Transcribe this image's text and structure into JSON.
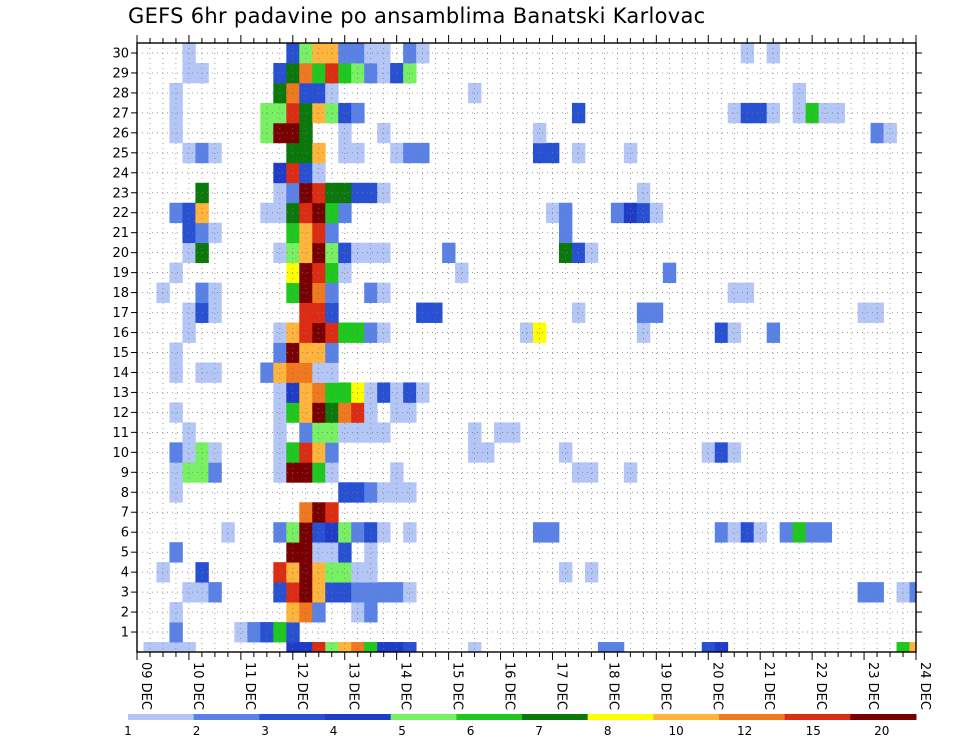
{
  "chart_data": {
    "type": "heatmap",
    "title": "GEFS 6hr padavine po ansamblima Banatski Karlovac",
    "x_tick_labels": [
      "09 DEC",
      "10 DEC",
      "11 DEC",
      "12 DEC",
      "13 DEC",
      "14 DEC",
      "15 DEC",
      "16 DEC",
      "17 DEC",
      "18 DEC",
      "19 DEC",
      "20 DEC",
      "21 DEC",
      "22 DEC",
      "23 DEC",
      "24 DEC"
    ],
    "steps_per_day": 4,
    "x_steps": 60,
    "y_members": [
      0,
      1,
      2,
      3,
      4,
      5,
      6,
      7,
      8,
      9,
      10,
      11,
      12,
      13,
      14,
      15,
      16,
      17,
      18,
      19,
      20,
      21,
      22,
      23,
      24,
      25,
      26,
      27,
      28,
      29,
      30
    ],
    "y_tick_labels": [
      "1",
      "2",
      "3",
      "4",
      "5",
      "6",
      "7",
      "8",
      "9",
      "10",
      "11",
      "12",
      "13",
      "14",
      "15",
      "16",
      "17",
      "18",
      "19",
      "20",
      "21",
      "22",
      "23",
      "24",
      "25",
      "26",
      "27",
      "28",
      "29",
      "30"
    ],
    "grid": "dotted",
    "legend": {
      "position": "bottom",
      "labels": [
        "1",
        "2",
        "3",
        "4",
        "5",
        "6",
        "7",
        "8",
        "10",
        "12",
        "15",
        "20"
      ],
      "colors": [
        "#b4c6f5",
        "#5a82e6",
        "#2850d2",
        "#1e3cc8",
        "#78f064",
        "#1ec81e",
        "#0a780a",
        "#ffff00",
        "#ffb43c",
        "#f0781e",
        "#dc2d14",
        "#780000"
      ]
    },
    "cells": [
      [
        0,
        1,
        1
      ],
      [
        0,
        2,
        1
      ],
      [
        0,
        3,
        1
      ],
      [
        0,
        4,
        1
      ],
      [
        0,
        12,
        4
      ],
      [
        0,
        13,
        4
      ],
      [
        0,
        14,
        11
      ],
      [
        0,
        15,
        5
      ],
      [
        0,
        16,
        9
      ],
      [
        0,
        17,
        10
      ],
      [
        0,
        18,
        6
      ],
      [
        0,
        19,
        4
      ],
      [
        0,
        20,
        4
      ],
      [
        0,
        21,
        3
      ],
      [
        0,
        26,
        1
      ],
      [
        0,
        36,
        2
      ],
      [
        0,
        37,
        2
      ],
      [
        0,
        44,
        3
      ],
      [
        0,
        45,
        4
      ],
      [
        0,
        59,
        6
      ],
      [
        0,
        60,
        9
      ],
      [
        1,
        3,
        2
      ],
      [
        1,
        8,
        1
      ],
      [
        1,
        9,
        2
      ],
      [
        1,
        10,
        3
      ],
      [
        1,
        11,
        6
      ],
      [
        1,
        12,
        3
      ],
      [
        2,
        3,
        1
      ],
      [
        2,
        12,
        9
      ],
      [
        2,
        13,
        10
      ],
      [
        2,
        14,
        2
      ],
      [
        2,
        17,
        1
      ],
      [
        2,
        18,
        2
      ],
      [
        3,
        4,
        1
      ],
      [
        3,
        5,
        1
      ],
      [
        3,
        6,
        2
      ],
      [
        3,
        11,
        3
      ],
      [
        3,
        12,
        11
      ],
      [
        3,
        13,
        12
      ],
      [
        3,
        14,
        9
      ],
      [
        3,
        15,
        3
      ],
      [
        3,
        16,
        3
      ],
      [
        3,
        17,
        2
      ],
      [
        3,
        18,
        2
      ],
      [
        3,
        19,
        2
      ],
      [
        3,
        20,
        2
      ],
      [
        3,
        21,
        1
      ],
      [
        3,
        56,
        2
      ],
      [
        3,
        57,
        2
      ],
      [
        3,
        59,
        1
      ],
      [
        3,
        60,
        2
      ],
      [
        4,
        2,
        1
      ],
      [
        4,
        5,
        3
      ],
      [
        4,
        11,
        11
      ],
      [
        4,
        12,
        9
      ],
      [
        4,
        13,
        12
      ],
      [
        4,
        14,
        9
      ],
      [
        4,
        15,
        5
      ],
      [
        4,
        16,
        5
      ],
      [
        4,
        17,
        1
      ],
      [
        4,
        18,
        1
      ],
      [
        4,
        33,
        1
      ],
      [
        4,
        35,
        1
      ],
      [
        5,
        3,
        2
      ],
      [
        5,
        12,
        12
      ],
      [
        5,
        13,
        12
      ],
      [
        5,
        14,
        1
      ],
      [
        5,
        15,
        1
      ],
      [
        5,
        16,
        3
      ],
      [
        5,
        18,
        1
      ],
      [
        6,
        7,
        1
      ],
      [
        6,
        11,
        2
      ],
      [
        6,
        12,
        5
      ],
      [
        6,
        13,
        12
      ],
      [
        6,
        14,
        3
      ],
      [
        6,
        15,
        4
      ],
      [
        6,
        16,
        5
      ],
      [
        6,
        17,
        2
      ],
      [
        6,
        18,
        3
      ],
      [
        6,
        19,
        1
      ],
      [
        6,
        21,
        1
      ],
      [
        6,
        31,
        2
      ],
      [
        6,
        32,
        2
      ],
      [
        6,
        45,
        2
      ],
      [
        6,
        46,
        1
      ],
      [
        6,
        47,
        3
      ],
      [
        6,
        48,
        1
      ],
      [
        6,
        50,
        2
      ],
      [
        6,
        51,
        6
      ],
      [
        6,
        52,
        2
      ],
      [
        6,
        53,
        2
      ],
      [
        7,
        13,
        10
      ],
      [
        7,
        14,
        12
      ],
      [
        7,
        15,
        11
      ],
      [
        8,
        16,
        3
      ],
      [
        8,
        17,
        3
      ],
      [
        8,
        18,
        2
      ],
      [
        8,
        19,
        1
      ],
      [
        8,
        20,
        1
      ],
      [
        8,
        21,
        1
      ],
      [
        8,
        3,
        1
      ],
      [
        9,
        3,
        1
      ],
      [
        9,
        4,
        5
      ],
      [
        9,
        5,
        5
      ],
      [
        9,
        6,
        2
      ],
      [
        9,
        11,
        1
      ],
      [
        9,
        12,
        12
      ],
      [
        9,
        13,
        12
      ],
      [
        9,
        14,
        6
      ],
      [
        9,
        15,
        1
      ],
      [
        9,
        20,
        1
      ],
      [
        9,
        34,
        1
      ],
      [
        9,
        35,
        1
      ],
      [
        9,
        38,
        1
      ],
      [
        10,
        3,
        2
      ],
      [
        10,
        4,
        1
      ],
      [
        10,
        5,
        5
      ],
      [
        10,
        6,
        1
      ],
      [
        10,
        11,
        1
      ],
      [
        10,
        12,
        6
      ],
      [
        10,
        13,
        11
      ],
      [
        10,
        14,
        9
      ],
      [
        10,
        15,
        2
      ],
      [
        10,
        26,
        1
      ],
      [
        10,
        27,
        1
      ],
      [
        10,
        33,
        1
      ],
      [
        10,
        44,
        1
      ],
      [
        10,
        45,
        3
      ],
      [
        10,
        46,
        1
      ],
      [
        11,
        4,
        1
      ],
      [
        11,
        11,
        1
      ],
      [
        11,
        13,
        2
      ],
      [
        11,
        14,
        5
      ],
      [
        11,
        15,
        5
      ],
      [
        11,
        16,
        1
      ],
      [
        11,
        17,
        1
      ],
      [
        11,
        18,
        1
      ],
      [
        11,
        19,
        1
      ],
      [
        11,
        26,
        1
      ],
      [
        11,
        28,
        1
      ],
      [
        11,
        29,
        1
      ],
      [
        12,
        3,
        1
      ],
      [
        12,
        11,
        1
      ],
      [
        12,
        12,
        6
      ],
      [
        12,
        13,
        9
      ],
      [
        12,
        14,
        12
      ],
      [
        12,
        15,
        7
      ],
      [
        12,
        16,
        10
      ],
      [
        12,
        17,
        11
      ],
      [
        12,
        18,
        1
      ],
      [
        12,
        20,
        1
      ],
      [
        12,
        21,
        1
      ],
      [
        13,
        11,
        1
      ],
      [
        13,
        12,
        4
      ],
      [
        13,
        13,
        9
      ],
      [
        13,
        14,
        10
      ],
      [
        13,
        15,
        6
      ],
      [
        13,
        16,
        6
      ],
      [
        13,
        17,
        8
      ],
      [
        13,
        18,
        1
      ],
      [
        13,
        19,
        3
      ],
      [
        13,
        20,
        1
      ],
      [
        13,
        21,
        3
      ],
      [
        13,
        22,
        1
      ],
      [
        14,
        3,
        1
      ],
      [
        14,
        5,
        1
      ],
      [
        14,
        6,
        1
      ],
      [
        14,
        10,
        2
      ],
      [
        14,
        11,
        9
      ],
      [
        14,
        12,
        10
      ],
      [
        14,
        13,
        10
      ],
      [
        14,
        14,
        1
      ],
      [
        14,
        15,
        1
      ],
      [
        15,
        3,
        1
      ],
      [
        15,
        11,
        2
      ],
      [
        15,
        12,
        12
      ],
      [
        15,
        13,
        9
      ],
      [
        15,
        14,
        9
      ],
      [
        15,
        15,
        2
      ],
      [
        16,
        4,
        1
      ],
      [
        16,
        11,
        1
      ],
      [
        16,
        12,
        9
      ],
      [
        16,
        13,
        11
      ],
      [
        16,
        14,
        12
      ],
      [
        16,
        15,
        11
      ],
      [
        16,
        16,
        6
      ],
      [
        16,
        17,
        6
      ],
      [
        16,
        18,
        2
      ],
      [
        16,
        19,
        1
      ],
      [
        16,
        30,
        1
      ],
      [
        16,
        31,
        8
      ],
      [
        16,
        39,
        1
      ],
      [
        16,
        45,
        3
      ],
      [
        16,
        46,
        1
      ],
      [
        16,
        49,
        2
      ],
      [
        17,
        4,
        1
      ],
      [
        17,
        5,
        3
      ],
      [
        17,
        6,
        1
      ],
      [
        17,
        13,
        11
      ],
      [
        17,
        14,
        11
      ],
      [
        17,
        15,
        3
      ],
      [
        17,
        22,
        3
      ],
      [
        17,
        23,
        3
      ],
      [
        17,
        34,
        1
      ],
      [
        17,
        39,
        2
      ],
      [
        17,
        40,
        2
      ],
      [
        17,
        56,
        1
      ],
      [
        17,
        57,
        1
      ],
      [
        18,
        2,
        1
      ],
      [
        18,
        5,
        2
      ],
      [
        18,
        6,
        1
      ],
      [
        18,
        12,
        6
      ],
      [
        18,
        13,
        12
      ],
      [
        18,
        14,
        10
      ],
      [
        18,
        15,
        2
      ],
      [
        18,
        18,
        2
      ],
      [
        18,
        19,
        1
      ],
      [
        18,
        46,
        1
      ],
      [
        18,
        47,
        1
      ],
      [
        19,
        3,
        1
      ],
      [
        19,
        12,
        8
      ],
      [
        19,
        13,
        12
      ],
      [
        19,
        14,
        11
      ],
      [
        19,
        15,
        6
      ],
      [
        19,
        16,
        1
      ],
      [
        19,
        25,
        1
      ],
      [
        19,
        41,
        2
      ],
      [
        20,
        4,
        1
      ],
      [
        20,
        5,
        7
      ],
      [
        20,
        11,
        1
      ],
      [
        20,
        12,
        5
      ],
      [
        20,
        13,
        9
      ],
      [
        20,
        14,
        12
      ],
      [
        20,
        15,
        5
      ],
      [
        20,
        16,
        3
      ],
      [
        20,
        17,
        1
      ],
      [
        20,
        18,
        1
      ],
      [
        20,
        19,
        1
      ],
      [
        20,
        24,
        2
      ],
      [
        20,
        33,
        7
      ],
      [
        20,
        34,
        3
      ],
      [
        20,
        35,
        1
      ],
      [
        21,
        4,
        3
      ],
      [
        21,
        5,
        2
      ],
      [
        21,
        6,
        1
      ],
      [
        21,
        12,
        6
      ],
      [
        21,
        13,
        9
      ],
      [
        21,
        14,
        11
      ],
      [
        21,
        15,
        2
      ],
      [
        21,
        33,
        2
      ],
      [
        22,
        3,
        2
      ],
      [
        22,
        4,
        3
      ],
      [
        22,
        5,
        9
      ],
      [
        22,
        10,
        1
      ],
      [
        22,
        11,
        1
      ],
      [
        22,
        12,
        7
      ],
      [
        22,
        13,
        11
      ],
      [
        22,
        14,
        12
      ],
      [
        22,
        15,
        6
      ],
      [
        22,
        16,
        2
      ],
      [
        22,
        32,
        1
      ],
      [
        22,
        33,
        2
      ],
      [
        22,
        37,
        2
      ],
      [
        22,
        38,
        4
      ],
      [
        22,
        39,
        3
      ],
      [
        22,
        40,
        1
      ],
      [
        23,
        5,
        7
      ],
      [
        23,
        11,
        1
      ],
      [
        23,
        12,
        2
      ],
      [
        23,
        13,
        12
      ],
      [
        23,
        14,
        11
      ],
      [
        23,
        15,
        7
      ],
      [
        23,
        16,
        7
      ],
      [
        23,
        17,
        3
      ],
      [
        23,
        18,
        3
      ],
      [
        23,
        19,
        1
      ],
      [
        23,
        39,
        1
      ],
      [
        24,
        11,
        4
      ],
      [
        24,
        12,
        11
      ],
      [
        24,
        13,
        3
      ],
      [
        24,
        14,
        1
      ],
      [
        25,
        4,
        1
      ],
      [
        25,
        5,
        2
      ],
      [
        25,
        6,
        1
      ],
      [
        25,
        12,
        7
      ],
      [
        25,
        13,
        7
      ],
      [
        25,
        14,
        9
      ],
      [
        25,
        16,
        1
      ],
      [
        25,
        17,
        1
      ],
      [
        25,
        20,
        1
      ],
      [
        25,
        21,
        2
      ],
      [
        25,
        22,
        2
      ],
      [
        25,
        31,
        3
      ],
      [
        25,
        32,
        3
      ],
      [
        25,
        34,
        1
      ],
      [
        25,
        38,
        1
      ],
      [
        26,
        3,
        1
      ],
      [
        26,
        10,
        5
      ],
      [
        26,
        11,
        12
      ],
      [
        26,
        12,
        12
      ],
      [
        26,
        13,
        7
      ],
      [
        26,
        16,
        1
      ],
      [
        26,
        19,
        1
      ],
      [
        26,
        31,
        1
      ],
      [
        26,
        57,
        2
      ],
      [
        26,
        58,
        1
      ],
      [
        27,
        3,
        1
      ],
      [
        27,
        10,
        5
      ],
      [
        27,
        11,
        5
      ],
      [
        27,
        12,
        11
      ],
      [
        27,
        13,
        7
      ],
      [
        27,
        14,
        9
      ],
      [
        27,
        15,
        5
      ],
      [
        27,
        16,
        3
      ],
      [
        27,
        17,
        2
      ],
      [
        27,
        34,
        3
      ],
      [
        27,
        46,
        1
      ],
      [
        27,
        47,
        3
      ],
      [
        27,
        48,
        3
      ],
      [
        27,
        49,
        1
      ],
      [
        27,
        51,
        1
      ],
      [
        27,
        52,
        6
      ],
      [
        27,
        53,
        1
      ],
      [
        27,
        54,
        1
      ],
      [
        28,
        3,
        1
      ],
      [
        28,
        11,
        7
      ],
      [
        28,
        12,
        10
      ],
      [
        28,
        13,
        3
      ],
      [
        28,
        14,
        3
      ],
      [
        28,
        15,
        1
      ],
      [
        28,
        26,
        1
      ],
      [
        28,
        51,
        1
      ],
      [
        29,
        4,
        1
      ],
      [
        29,
        5,
        1
      ],
      [
        29,
        11,
        3
      ],
      [
        29,
        12,
        7
      ],
      [
        29,
        13,
        10
      ],
      [
        29,
        14,
        6
      ],
      [
        29,
        15,
        11
      ],
      [
        29,
        16,
        6
      ],
      [
        29,
        17,
        5
      ],
      [
        29,
        18,
        2
      ],
      [
        29,
        19,
        1
      ],
      [
        29,
        20,
        3
      ],
      [
        29,
        21,
        5
      ],
      [
        30,
        4,
        1
      ],
      [
        30,
        12,
        3
      ],
      [
        30,
        13,
        5
      ],
      [
        30,
        14,
        9
      ],
      [
        30,
        15,
        9
      ],
      [
        30,
        16,
        2
      ],
      [
        30,
        17,
        2
      ],
      [
        30,
        18,
        1
      ],
      [
        30,
        19,
        1
      ],
      [
        30,
        21,
        2
      ],
      [
        30,
        22,
        1
      ],
      [
        30,
        47,
        1
      ],
      [
        30,
        49,
        1
      ]
    ]
  }
}
